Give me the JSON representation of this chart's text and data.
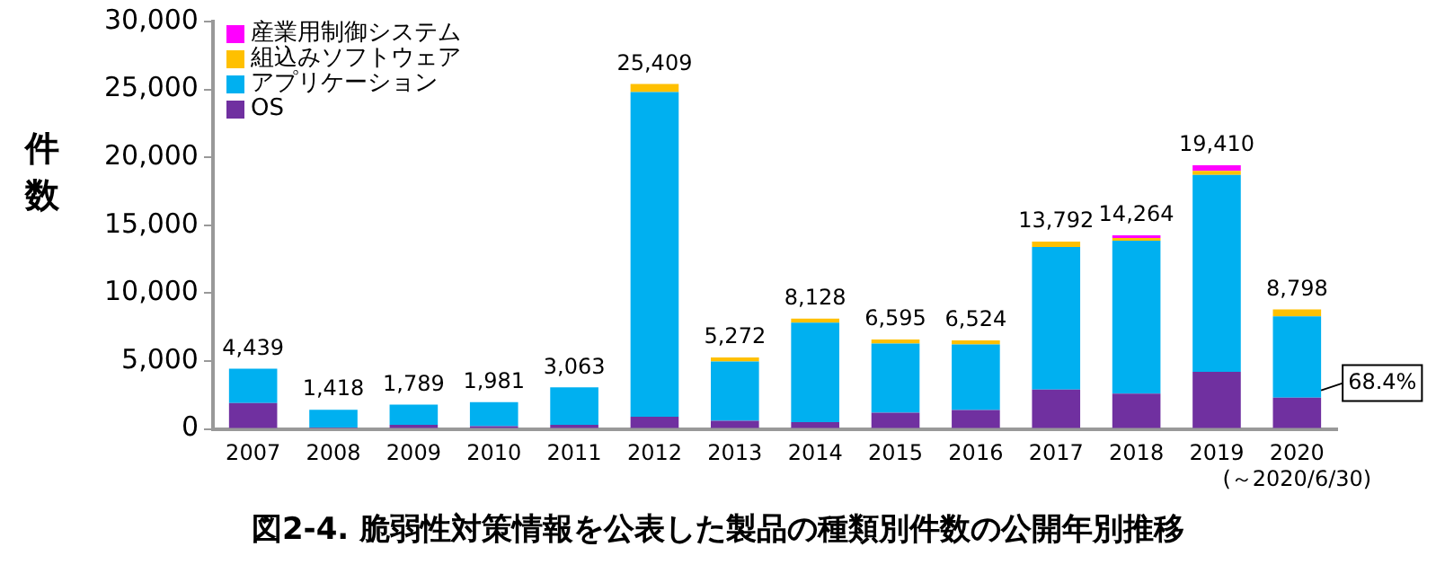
{
  "chart_data": {
    "type": "bar",
    "title": "図2-4. 脆弱性対策情報を公表した製品の種類別件数の公開年別推移",
    "ylabel": "件数",
    "categories": [
      "2007",
      "2008",
      "2009",
      "2010",
      "2011",
      "2012",
      "2013",
      "2014",
      "2015",
      "2016",
      "2017",
      "2018",
      "2019",
      "2020\n(～2020/6/30)"
    ],
    "stacked": true,
    "series": [
      {
        "name": "OS",
        "color": "#7030a0",
        "values": [
          1900,
          100,
          300,
          200,
          300,
          900,
          600,
          500,
          1200,
          1400,
          2900,
          2600,
          4200,
          2300
        ]
      },
      {
        "name": "アプリケーション",
        "color": "#00b0f0",
        "values": [
          2539,
          1318,
          1489,
          1781,
          2763,
          23909,
          4372,
          7328,
          5095,
          4824,
          10492,
          11264,
          14510,
          5998
        ]
      },
      {
        "name": "組込みソフトウェア",
        "color": "#ffc000",
        "values": [
          null,
          null,
          null,
          null,
          null,
          600,
          300,
          300,
          300,
          300,
          400,
          200,
          300,
          500
        ]
      },
      {
        "name": "産業用制御システム",
        "color": "#ff00ff",
        "values": [
          null,
          null,
          null,
          null,
          null,
          null,
          null,
          null,
          null,
          null,
          null,
          200,
          400,
          null
        ]
      }
    ],
    "totals": [
      "4,439",
      "1,418",
      "1,789",
      "1,981",
      "3,063",
      "25,409",
      "5,272",
      "8,128",
      "6,595",
      "6,524",
      "13,792",
      "14,264",
      "19,410",
      "8,798"
    ],
    "annotations": [
      "68.4%"
    ],
    "ylim": [
      0,
      30000
    ],
    "yticks": [
      {
        "value": 0,
        "label": "0"
      },
      {
        "value": 5000,
        "label": "5,000"
      },
      {
        "value": 10000,
        "label": "10,000"
      },
      {
        "value": 15000,
        "label": "15,000"
      },
      {
        "value": 20000,
        "label": "20,000"
      },
      {
        "value": 25000,
        "label": "25,000"
      },
      {
        "value": 30000,
        "label": "30,000"
      }
    ],
    "grid": false,
    "legend": "top left"
  }
}
